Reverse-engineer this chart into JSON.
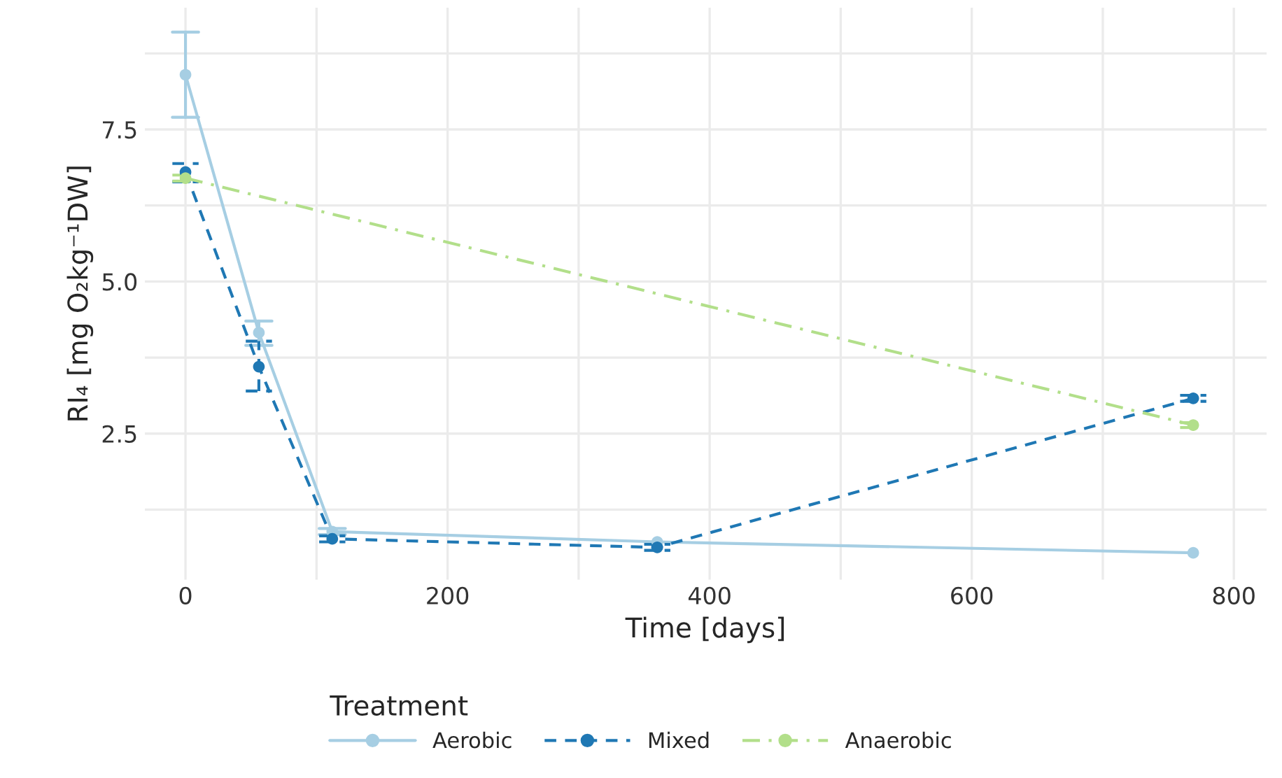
{
  "chart_data": {
    "type": "line",
    "xlabel": "Time [days]",
    "ylabel": "RI₄ [mg O₂kg⁻¹DW]",
    "legend_title": "Treatment",
    "legend": "bottom",
    "marker": "circle",
    "grid": true,
    "xlim": [
      -31,
      825
    ],
    "ylim": [
      0.1,
      9.5
    ],
    "xticks": [
      0,
      {
        "value": 100,
        "label": null
      },
      200,
      {
        "value": 300,
        "label": null
      },
      400,
      {
        "value": 500,
        "label": null
      },
      600,
      {
        "value": 700,
        "label": null
      },
      800
    ],
    "yticks": [
      {
        "value": 1.25,
        "label": null
      },
      2.5,
      {
        "value": 3.75,
        "label": null
      },
      {
        "value": 5,
        "label": "5.0"
      },
      {
        "value": 6.25,
        "label": null
      },
      7.5,
      {
        "value": 8.75,
        "label": null
      }
    ],
    "series": [
      {
        "name": "Aerobic",
        "color": "#a6cee3",
        "line_style": "solid",
        "x": [
          0,
          56,
          112,
          360,
          769
        ],
        "values": [
          8.4,
          4.16,
          0.89,
          0.72,
          0.54
        ],
        "errors": [
          [
            7.7,
            9.1
          ],
          [
            3.95,
            4.35
          ],
          [
            0.84,
            0.94
          ],
          null,
          null
        ]
      },
      {
        "name": "Mixed",
        "color": "#1f78b4",
        "line_style": "dashed",
        "x": [
          0,
          56,
          112,
          360,
          769
        ],
        "values": [
          6.8,
          3.6,
          0.77,
          0.63,
          3.08
        ],
        "errors": [
          [
            6.64,
            6.94
          ],
          [
            3.2,
            4.02
          ],
          [
            0.72,
            0.82
          ],
          [
            0.58,
            0.68
          ],
          [
            3.03,
            3.13
          ]
        ]
      },
      {
        "name": "Anaerobic",
        "color": "#b2df8a",
        "line_style": "dashdot",
        "x": [
          0,
          769
        ],
        "values": [
          6.7,
          2.64
        ],
        "errors": [
          [
            6.65,
            6.75
          ],
          [
            2.6,
            2.68
          ]
        ]
      }
    ]
  }
}
